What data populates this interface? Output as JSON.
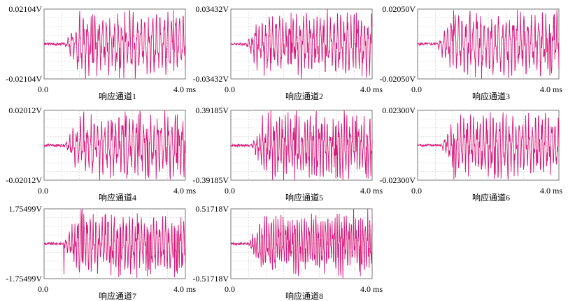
{
  "chart_data": [
    {
      "type": "line",
      "title": "响应通道1",
      "ymax_label": "0.02104V",
      "ymin_label": "-0.02104V",
      "ylim": [
        -0.02104,
        0.02104
      ],
      "xlim": [
        0,
        4.0
      ],
      "x_start_label": "0.0",
      "x_end_label": "4.0 ms",
      "grid": true,
      "series_color": "#d6187a"
    },
    {
      "type": "line",
      "title": "响应通道2",
      "ymax_label": "0.03432V",
      "ymin_label": "-0.03432V",
      "ylim": [
        -0.03432,
        0.03432
      ],
      "xlim": [
        0,
        4.0
      ],
      "x_start_label": "0.0",
      "x_end_label": "4.0 ms",
      "grid": true,
      "series_color": "#d6187a"
    },
    {
      "type": "line",
      "title": "响应通道3",
      "ymax_label": "0.02050V",
      "ymin_label": "-0.02050V",
      "ylim": [
        -0.0205,
        0.0205
      ],
      "xlim": [
        0,
        4.0
      ],
      "x_start_label": "0.0",
      "x_end_label": "4.0 ms",
      "grid": true,
      "series_color": "#d6187a"
    },
    {
      "type": "line",
      "title": "响应通道4",
      "ymax_label": "0.02012V",
      "ymin_label": "-0.02012V",
      "ylim": [
        -0.02012,
        0.02012
      ],
      "xlim": [
        0,
        4.0
      ],
      "x_start_label": "0.0",
      "x_end_label": "4.0 ms",
      "grid": true,
      "series_color": "#d6187a"
    },
    {
      "type": "line",
      "title": "响应通道5",
      "ymax_label": "0.39185V",
      "ymin_label": "-0.39185V",
      "ylim": [
        -0.39185,
        0.39185
      ],
      "xlim": [
        0,
        4.0
      ],
      "x_start_label": "0.0",
      "x_end_label": "4.0 ms",
      "grid": true,
      "series_color": "#d6187a"
    },
    {
      "type": "line",
      "title": "响应通道6",
      "ymax_label": "0.02300V",
      "ymin_label": "-0.02300V",
      "ylim": [
        -0.023,
        0.023
      ],
      "xlim": [
        0,
        4.0
      ],
      "x_start_label": "0.0",
      "x_end_label": "4.0 ms",
      "grid": true,
      "series_color": "#d6187a"
    },
    {
      "type": "line",
      "title": "响应通道7",
      "ymax_label": "1.75499V",
      "ymin_label": "-1.75499V",
      "ylim": [
        -1.75499,
        1.75499
      ],
      "xlim": [
        0,
        4.0
      ],
      "x_start_label": "0.0",
      "x_end_label": "4.0 ms",
      "grid": true,
      "series_color": "#d6187a"
    },
    {
      "type": "line",
      "title": "响应通道8",
      "ymax_label": "0.51718V",
      "ymin_label": "-0.51718V",
      "ylim": [
        -0.51718,
        0.51718
      ],
      "xlim": [
        0,
        4.0
      ],
      "x_start_label": "0.0",
      "x_end_label": "4.0 ms",
      "grid": true,
      "series_color": "#d6187a"
    }
  ]
}
